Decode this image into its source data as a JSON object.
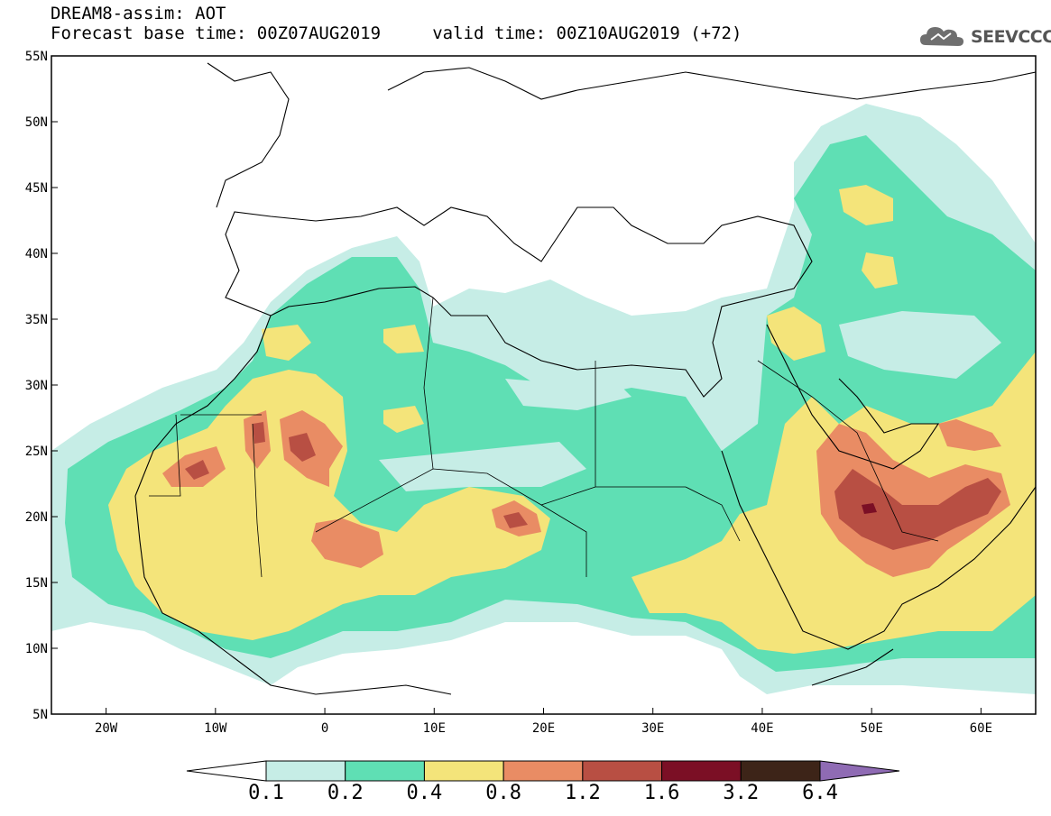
{
  "title": {
    "line1": "DREAM8-assim: AOT",
    "line2": "Forecast base time: 00Z07AUG2019     valid time: 00Z10AUG2019 (+72)"
  },
  "logo": {
    "text": "SEEVCCC",
    "icon": "cloud-icon"
  },
  "axes": {
    "lon_ticks": [
      "20W",
      "10W",
      "0",
      "10E",
      "20E",
      "30E",
      "40E",
      "50E",
      "60E"
    ],
    "lat_ticks": [
      "55N",
      "50N",
      "45N",
      "40N",
      "35N",
      "30N",
      "25N",
      "20N",
      "15N",
      "10N",
      "5N"
    ],
    "lon_range": [
      -25,
      65
    ],
    "lat_range": [
      5,
      55
    ]
  },
  "colorbar": {
    "labels": [
      "0.1",
      "0.2",
      "0.4",
      "0.8",
      "1.2",
      "1.6",
      "3.2",
      "6.4"
    ],
    "colors": [
      "#ffffff",
      "#c6ede6",
      "#5fdfb4",
      "#f4e47a",
      "#e98c64",
      "#b84f43",
      "#7b0f25",
      "#3d2418",
      "#8f6bb4"
    ]
  }
}
